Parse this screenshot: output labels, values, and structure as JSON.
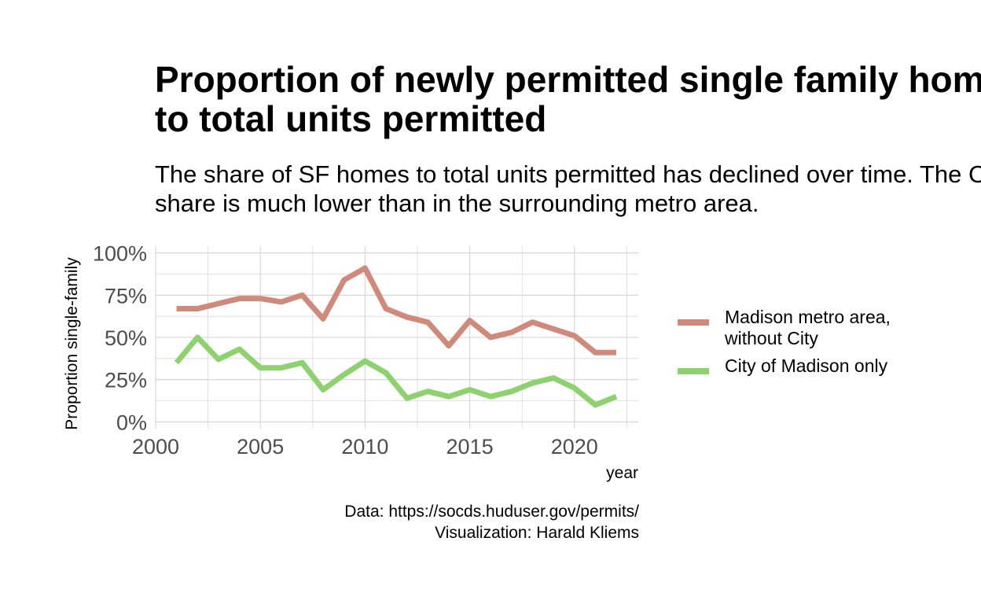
{
  "title_lines": [
    "Proportion of newly permitted single family homes",
    "to total units permitted"
  ],
  "subtitle_lines": [
    "The share of SF homes to total units permitted has declined over time. The City's",
    "share is much lower than in the surrounding metro area."
  ],
  "caption_lines": [
    "Data: https://socds.huduser.gov/permits/",
    "Visualization: Harald Kliems"
  ],
  "colors": {
    "metro": "#d08a7c",
    "city": "#8ed16f",
    "grid": "#d3d3d3",
    "tick_text": "#4d4d4d"
  },
  "chart_data": {
    "type": "line",
    "xlabel": "year",
    "ylabel": "Proportion single-family",
    "xlim": [
      2000,
      2023
    ],
    "ylim": [
      0,
      1
    ],
    "x_ticks": [
      2000,
      2005,
      2010,
      2015,
      2020
    ],
    "x_tick_labels": [
      "2000",
      "2005",
      "2010",
      "2015",
      "2020"
    ],
    "y_ticks": [
      0,
      0.25,
      0.5,
      0.75,
      1
    ],
    "y_tick_labels": [
      "0%",
      "25%",
      "50%",
      "75%",
      "100%"
    ],
    "grid": true,
    "legend_position": "right",
    "x": [
      2001,
      2002,
      2003,
      2004,
      2005,
      2006,
      2007,
      2008,
      2009,
      2010,
      2011,
      2012,
      2013,
      2014,
      2015,
      2016,
      2017,
      2018,
      2019,
      2020,
      2021,
      2022
    ],
    "series": [
      {
        "name": "Madison metro area,\nwithout City",
        "color": "#d08a7c",
        "values": [
          0.67,
          0.67,
          0.7,
          0.73,
          0.73,
          0.71,
          0.75,
          0.61,
          0.84,
          0.91,
          0.67,
          0.62,
          0.59,
          0.45,
          0.6,
          0.5,
          0.53,
          0.59,
          0.55,
          0.51,
          0.41,
          0.41
        ]
      },
      {
        "name": "City of Madison only",
        "color": "#8ed16f",
        "values": [
          0.35,
          0.5,
          0.37,
          0.43,
          0.32,
          0.32,
          0.35,
          0.19,
          0.28,
          0.36,
          0.29,
          0.14,
          0.18,
          0.15,
          0.19,
          0.15,
          0.18,
          0.23,
          0.26,
          0.2,
          0.1,
          0.15
        ]
      }
    ]
  }
}
